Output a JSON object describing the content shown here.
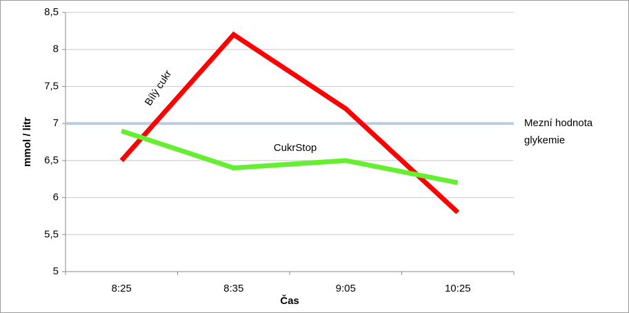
{
  "chart_data": {
    "type": "line",
    "y_label": "mmol / litr",
    "x_label": "Čas",
    "categories": [
      "8:25",
      "8:35",
      "9:05",
      "10:25"
    ],
    "series": [
      {
        "name": "Bílý cukr",
        "color": "#ff0000",
        "values": [
          6.5,
          8.2,
          7.2,
          5.8
        ]
      },
      {
        "name": "CukrStop",
        "color": "#66ee33",
        "values": [
          6.9,
          6.4,
          6.5,
          6.2
        ]
      }
    ],
    "threshold": {
      "value": 7,
      "color": "#b8cce4",
      "label": [
        "Mezní hodnota",
        "glykemie"
      ]
    },
    "ylim": [
      5,
      8.5
    ],
    "yticks": [
      5,
      {
        "value": 5.5,
        "label": "5,5"
      },
      6,
      {
        "value": 6.5,
        "label": "6,5"
      },
      7,
      {
        "value": 7.5,
        "label": "7,5"
      },
      8,
      {
        "value": 8.5,
        "label": "8,5"
      }
    ],
    "grid": true
  }
}
